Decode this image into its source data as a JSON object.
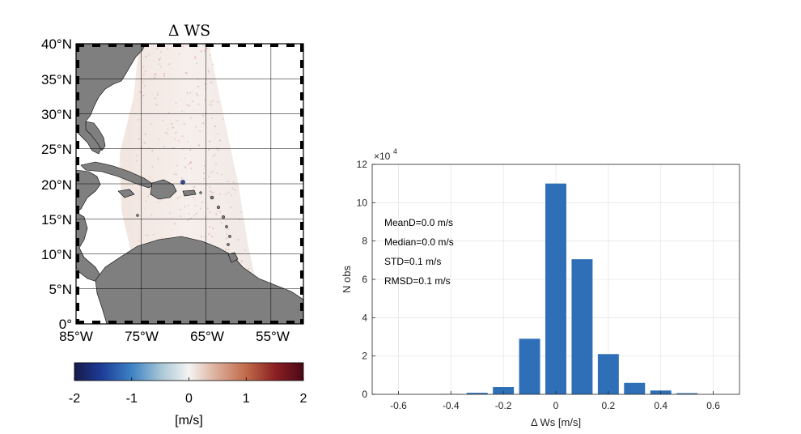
{
  "chart_data": [
    {
      "type": "heatmap",
      "title": "Δ WS",
      "lat_ticks": [
        "40°N",
        "35°N",
        "30°N",
        "25°N",
        "20°N",
        "15°N",
        "10°N",
        "5°N",
        "0°"
      ],
      "lon_ticks": [
        "85°W",
        "75°W",
        "65°W",
        "55°W"
      ],
      "lat_range": [
        0,
        40
      ],
      "lon_range": [
        -85,
        -50
      ],
      "colorbar": {
        "ticks": [
          "-2",
          "-1",
          "0",
          "1",
          "2"
        ],
        "range": [
          -2,
          2
        ],
        "label": "[m/s]"
      },
      "colors": {
        "land": "#7f7f7f",
        "ocean": "#ffffff",
        "low": "#171a4a",
        "mid": "#f7f7f7",
        "high": "#4a0818"
      }
    },
    {
      "type": "bar",
      "x": [
        -0.4,
        -0.3,
        -0.2,
        -0.1,
        0.0,
        0.1,
        0.2,
        0.3,
        0.4,
        0.5
      ],
      "values": [
        200,
        800,
        3800,
        29000,
        110000,
        70500,
        21000,
        6000,
        2000,
        600
      ],
      "xlabel": "Δ Ws [m/s]",
      "ylabel": "N obs",
      "xlim": [
        -0.7,
        0.7
      ],
      "ylim": [
        0,
        120000
      ],
      "xticks": [
        "-0.6",
        "-0.4",
        "-0.2",
        "0",
        "0.2",
        "0.4",
        "0.6"
      ],
      "yticks": [
        "0",
        "2",
        "4",
        "6",
        "8",
        "10",
        "12"
      ],
      "exponent_base": "×10",
      "exponent_power": "4",
      "grid": true,
      "bar_color": "#2f6fb7",
      "annotations": [
        "MeanD=0.0 m/s",
        "Median=0.0 m/s",
        "STD=0.1 m/s",
        "RMSD=0.1 m/s"
      ]
    }
  ]
}
